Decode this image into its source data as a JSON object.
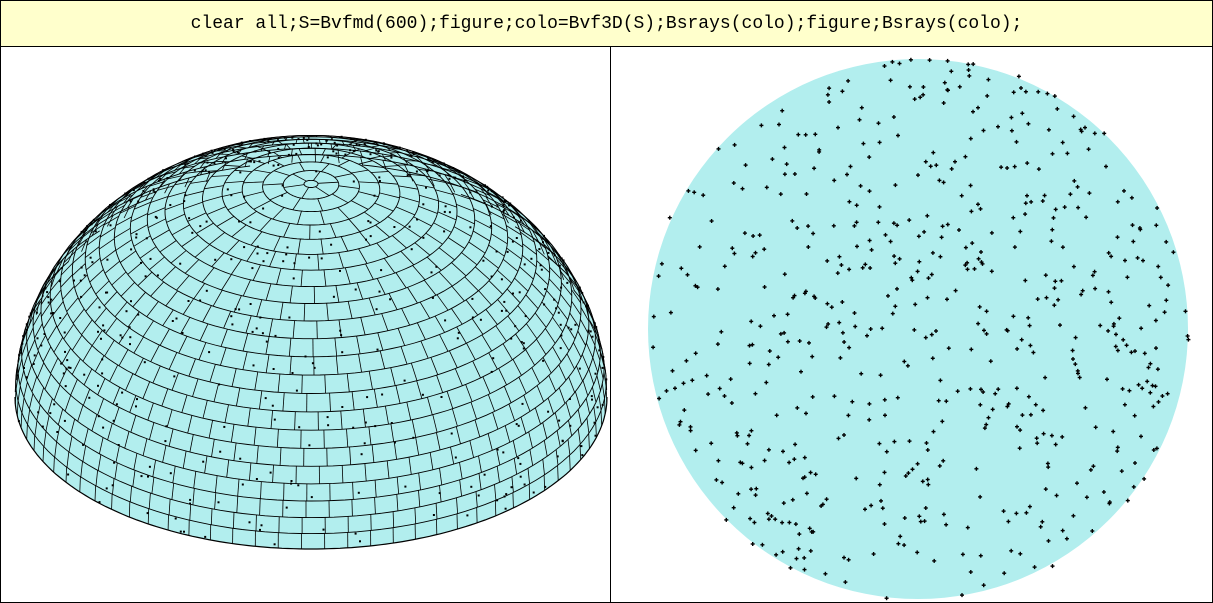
{
  "header": {
    "command": "clear all;S=Bvfmd(600);figure;colo=Bvf3D(S);Bsrays(colo);figure;Bsrays(colo);",
    "background": "#ffffcc"
  },
  "colors": {
    "fill": "#b2eeee",
    "grid_line": "#000000",
    "point": "#000000"
  },
  "figures": {
    "left": {
      "kind": "hemisphere-3d-grid",
      "point_count": 600
    },
    "right": {
      "kind": "projected-disk",
      "point_count": 600
    }
  }
}
